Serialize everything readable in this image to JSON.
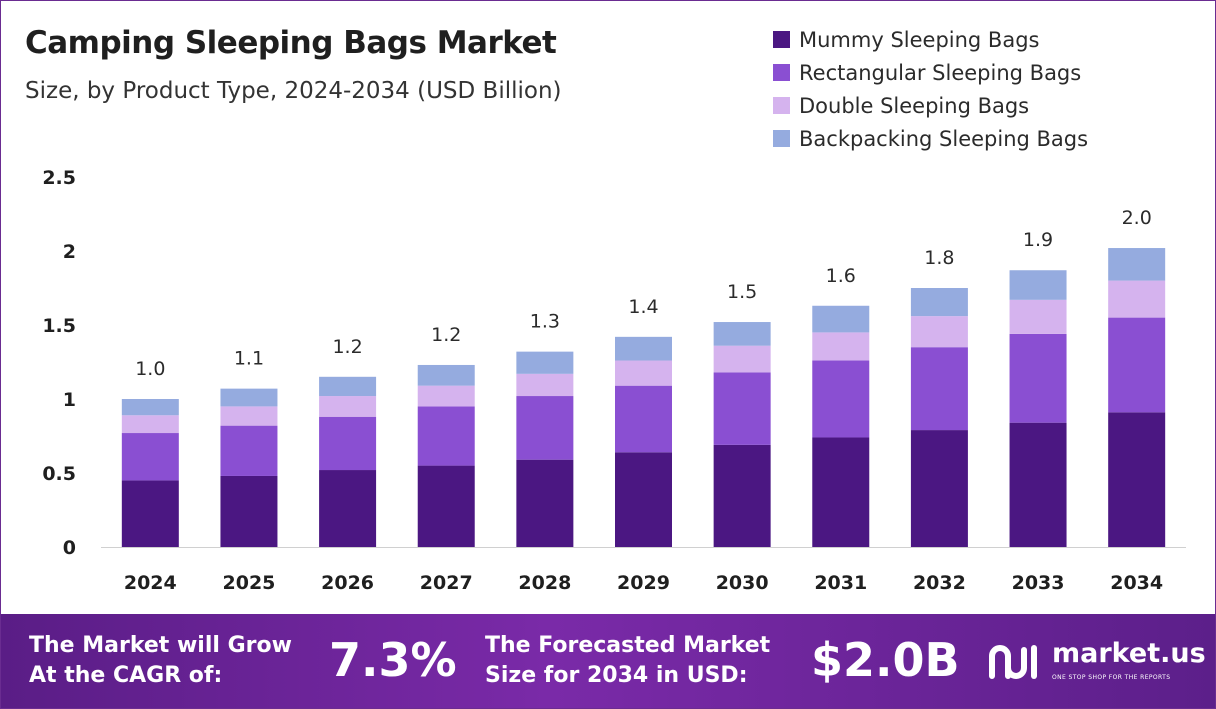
{
  "header": {
    "title": "Camping Sleeping Bags Market",
    "subtitle": "Size, by Product Type, 2024-2034 (USD Billion)"
  },
  "chart_data": {
    "type": "bar",
    "stacked": true,
    "categories": [
      "2024",
      "2025",
      "2026",
      "2027",
      "2028",
      "2029",
      "2030",
      "2031",
      "2032",
      "2033",
      "2034"
    ],
    "series": [
      {
        "name": "Mummy Sleeping Bags",
        "color": "#4b1782",
        "values": [
          0.45,
          0.48,
          0.52,
          0.55,
          0.59,
          0.64,
          0.69,
          0.74,
          0.79,
          0.84,
          0.91
        ]
      },
      {
        "name": "Rectangular Sleeping Bags",
        "color": "#8a4fd2",
        "values": [
          0.32,
          0.34,
          0.36,
          0.4,
          0.43,
          0.45,
          0.49,
          0.52,
          0.56,
          0.6,
          0.64
        ]
      },
      {
        "name": "Double Sleeping Bags",
        "color": "#d5b3ee",
        "values": [
          0.12,
          0.13,
          0.14,
          0.14,
          0.15,
          0.17,
          0.18,
          0.19,
          0.21,
          0.23,
          0.25
        ]
      },
      {
        "name": "Backpacking Sleeping Bags",
        "color": "#95abdf",
        "values": [
          0.11,
          0.12,
          0.13,
          0.14,
          0.15,
          0.16,
          0.16,
          0.18,
          0.19,
          0.2,
          0.22
        ]
      }
    ],
    "totals_labels": [
      "1.0",
      "1.1",
      "1.2",
      "1.2",
      "1.3",
      "1.4",
      "1.5",
      "1.6",
      "1.8",
      "1.9",
      "2.0"
    ],
    "yticks": [
      "0",
      "0.5",
      "1",
      "1.5",
      "2",
      "2.5"
    ],
    "ytick_values": [
      0,
      0.5,
      1,
      1.5,
      2,
      2.5
    ],
    "ylim": [
      0,
      2.5
    ],
    "xlabel": "",
    "ylabel": "",
    "grid": false,
    "legend_position": "top-right"
  },
  "footer": {
    "cagr_label_line1": "The Market will Grow",
    "cagr_label_line2": "At the CAGR of:",
    "cagr_value": "7.3%",
    "forecast_label_line1": "The Forecasted Market",
    "forecast_label_line2": "Size for 2034 in USD:",
    "forecast_value": "$2.0B",
    "logo_text": "market.us",
    "logo_tagline": "ONE STOP SHOP FOR THE REPORTS"
  }
}
